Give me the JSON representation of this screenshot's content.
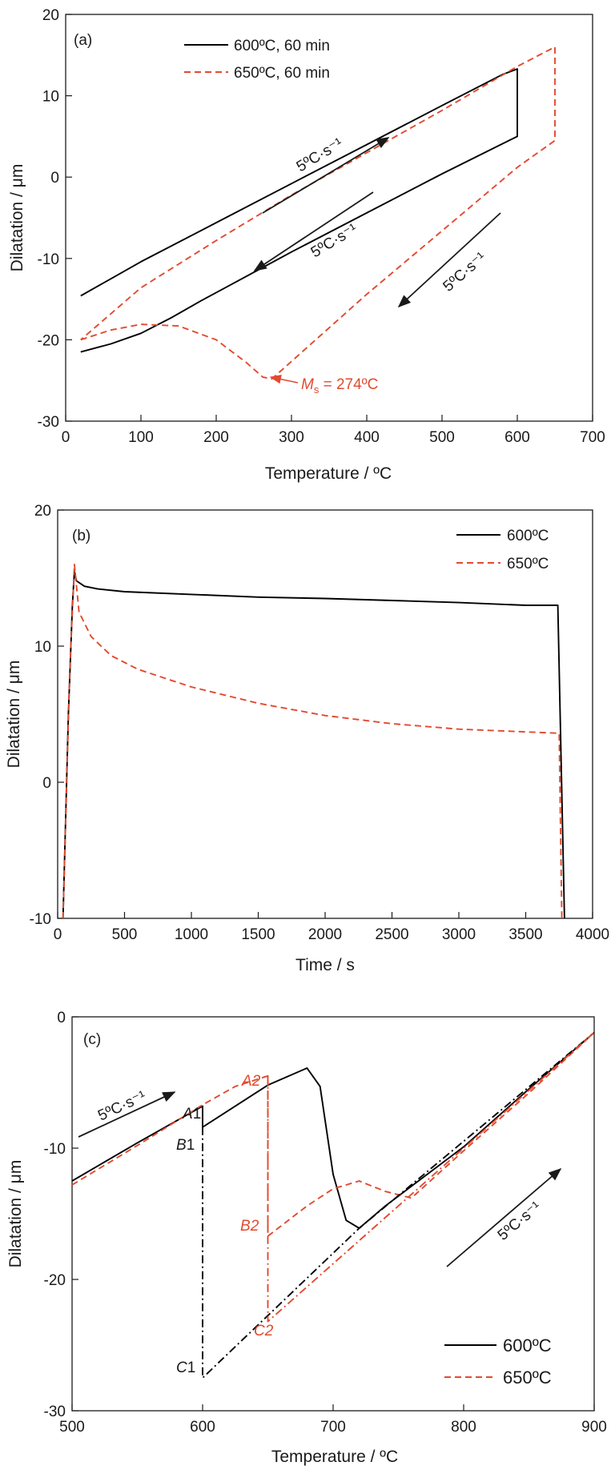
{
  "chart_data": [
    {
      "type": "line",
      "panel_label": "(a)",
      "xlabel": "Temperature / ºC",
      "ylabel": "Dilatation / μm",
      "xlim": [
        0,
        700
      ],
      "ylim": [
        -30,
        20
      ],
      "xticks": [
        0,
        100,
        200,
        300,
        400,
        500,
        600,
        700
      ],
      "yticks": [
        -30,
        -20,
        -10,
        0,
        10,
        20
      ],
      "legend_position": "top-left",
      "series": [
        {
          "name": "600ºC, 60 min",
          "color": "#000000",
          "style": "solid",
          "x": [
            20,
            60,
            100,
            140,
            180,
            220,
            260,
            300,
            400,
            500,
            600,
            600,
            580,
            500,
            400,
            300,
            200,
            100,
            20
          ],
          "y": [
            -21.5,
            -20.5,
            -19.2,
            -17.3,
            -15.2,
            -13.2,
            -11.2,
            -9.2,
            -4.4,
            0.4,
            5.0,
            13.3,
            12.6,
            8.8,
            4.0,
            -0.8,
            -5.6,
            -10.4,
            -14.6
          ]
        },
        {
          "name": "650ºC, 60 min",
          "color": "#e24a2f",
          "style": "dashed",
          "x": [
            20,
            60,
            100,
            150,
            200,
            240,
            262,
            274,
            320,
            400,
            500,
            600,
            650,
            650,
            600,
            500,
            400,
            300,
            200,
            100,
            20
          ],
          "y": [
            -20,
            -18.8,
            -18.1,
            -18.3,
            -20.0,
            -22.8,
            -24.6,
            -24.8,
            -21.0,
            -14.4,
            -6.6,
            1.2,
            4.5,
            16.0,
            13.6,
            8.2,
            3.0,
            -2.2,
            -7.8,
            -13.6,
            -20.0
          ]
        }
      ],
      "annotations": {
        "heat_rate_1": "5ºC·s⁻¹",
        "heat_rate_2": "5ºC·s⁻¹",
        "heat_rate_3": "5ºC·s⁻¹",
        "ms_label": "M",
        "ms_sub": "s",
        "ms_value": " = 274ºC"
      }
    },
    {
      "type": "line",
      "panel_label": "(b)",
      "xlabel": "Time / s",
      "ylabel": "Dilatation / μm",
      "xlim": [
        0,
        4000
      ],
      "ylim": [
        -10,
        20
      ],
      "xticks": [
        0,
        500,
        1000,
        1500,
        2000,
        2500,
        3000,
        3500,
        4000
      ],
      "yticks": [
        -10,
        0,
        10,
        20
      ],
      "legend_position": "top-right",
      "series": [
        {
          "name": "600ºC",
          "color": "#000000",
          "style": "solid",
          "x": [
            40,
            80,
            110,
            125,
            140,
            200,
            300,
            500,
            1000,
            1500,
            2000,
            2500,
            3000,
            3500,
            3740,
            3790
          ],
          "y": [
            -10,
            5,
            13,
            15.5,
            14.8,
            14.4,
            14.2,
            14.0,
            13.8,
            13.6,
            13.5,
            13.35,
            13.2,
            13.0,
            13.0,
            -10
          ]
        },
        {
          "name": "650ºC",
          "color": "#e24a2f",
          "style": "dashed",
          "x": [
            40,
            90,
            125,
            160,
            250,
            400,
            600,
            1000,
            1500,
            2000,
            2500,
            3000,
            3500,
            3750,
            3770
          ],
          "y": [
            -10,
            8,
            16.0,
            12.5,
            10.7,
            9.3,
            8.3,
            7.0,
            5.8,
            4.9,
            4.3,
            3.9,
            3.7,
            3.6,
            -10
          ]
        }
      ]
    },
    {
      "type": "line",
      "panel_label": "(c)",
      "xlabel": "Temperature / ºC",
      "ylabel": "Dilatation / μm",
      "xlim": [
        500,
        900
      ],
      "ylim": [
        -30,
        0
      ],
      "xticks": [
        500,
        600,
        700,
        800,
        900
      ],
      "yticks": [
        -30,
        -20,
        -10,
        0
      ],
      "legend_position": "bottom-right",
      "series": [
        {
          "name": "600ºC",
          "color": "#000000",
          "style": "solid",
          "x": [
            500,
            550,
            600,
            600,
            650,
            680,
            690,
            700,
            710,
            720,
            740,
            800,
            850,
            900
          ],
          "y": [
            -12.5,
            -9.6,
            -6.8,
            -8.4,
            -5.2,
            -3.9,
            -5.3,
            -12.0,
            -15.5,
            -16.1,
            -14.4,
            -9.9,
            -5.5,
            -1.2
          ]
        },
        {
          "name": "650ºC",
          "color": "#e24a2f",
          "style": "dashed",
          "x": [
            500,
            550,
            600,
            625,
            650,
            650,
            680,
            700,
            720,
            740,
            760,
            800,
            850,
            900
          ],
          "y": [
            -12.8,
            -9.8,
            -6.7,
            -5.3,
            -4.5,
            -16.7,
            -14.4,
            -13.1,
            -12.5,
            -13.3,
            -13.8,
            -10.2,
            -5.8,
            -1.2
          ]
        },
        {
          "name": "",
          "color": "#000000",
          "style": "dashdot",
          "x": [
            600,
            600,
            720,
            900
          ],
          "y": [
            -8.4,
            -27.5,
            -16.1,
            -1.2
          ]
        },
        {
          "name": "",
          "color": "#e24a2f",
          "style": "dashdot",
          "x": [
            650,
            650,
            900
          ],
          "y": [
            -4.5,
            -23.2,
            -1.2
          ]
        }
      ],
      "points": {
        "A1": "A",
        "B1": "B",
        "C1": "C",
        "A2": "A",
        "B2": "B",
        "C2": "C",
        "digit1": "1",
        "digit2": "2"
      },
      "annotations": {
        "heat_rate_1": "5ºC·s⁻¹",
        "heat_rate_2": "5ºC·s⁻¹"
      }
    }
  ]
}
